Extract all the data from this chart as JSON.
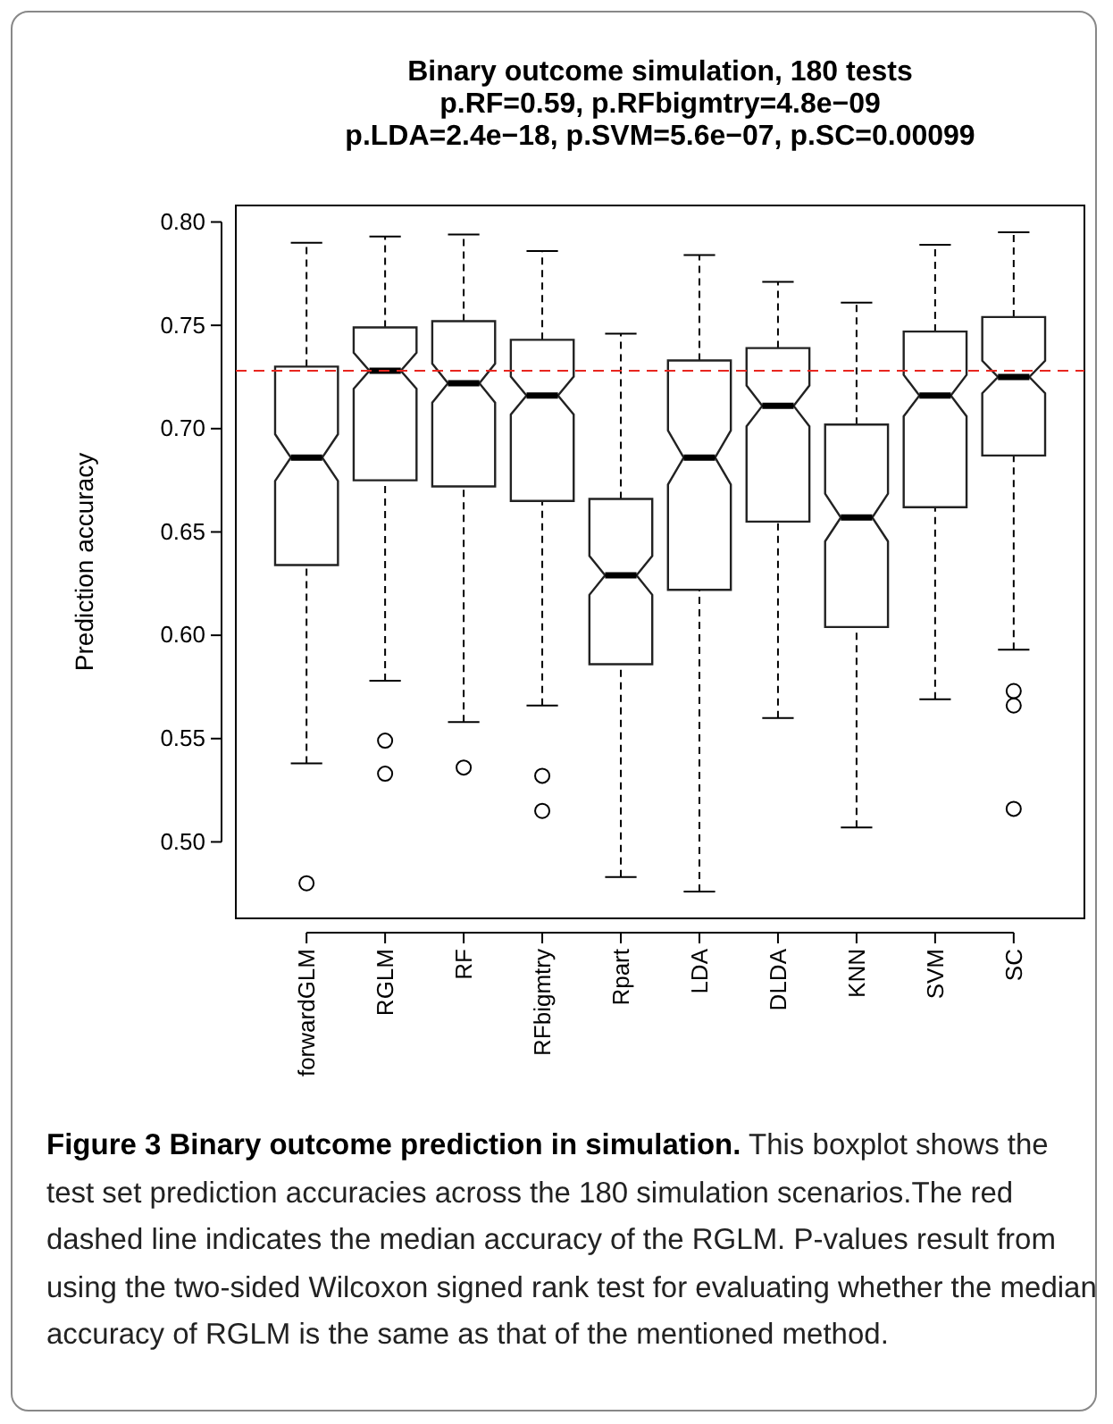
{
  "chart_data": {
    "type": "box",
    "title": "Binary outcome simulation, 180 tests",
    "subtitle": "p.RF=0.59, p.RFbigmtry=4.8e−09\np.LDA=2.4e−18, p.SVM=5.6e−07, p.SC=0.00099",
    "ylabel": "Prediction accuracy",
    "categories": [
      "forwardGLM",
      "RGLM",
      "RF",
      "RFbigmtry",
      "Rpart",
      "LDA",
      "DLDA",
      "KNN",
      "SVM",
      "SC"
    ],
    "boxes": [
      {
        "low": 0.538,
        "q1": 0.634,
        "median": 0.686,
        "q3": 0.73,
        "high": 0.79,
        "outliers": [
          0.48
        ]
      },
      {
        "low": 0.578,
        "q1": 0.675,
        "median": 0.728,
        "q3": 0.749,
        "high": 0.793,
        "outliers": [
          0.549,
          0.533
        ]
      },
      {
        "low": 0.558,
        "q1": 0.672,
        "median": 0.722,
        "q3": 0.752,
        "high": 0.794,
        "outliers": [
          0.536
        ]
      },
      {
        "low": 0.566,
        "q1": 0.665,
        "median": 0.716,
        "q3": 0.743,
        "high": 0.786,
        "outliers": [
          0.532,
          0.515
        ]
      },
      {
        "low": 0.483,
        "q1": 0.586,
        "median": 0.629,
        "q3": 0.666,
        "high": 0.746
      },
      {
        "low": 0.476,
        "q1": 0.622,
        "median": 0.686,
        "q3": 0.733,
        "high": 0.784
      },
      {
        "low": 0.56,
        "q1": 0.655,
        "median": 0.711,
        "q3": 0.739,
        "high": 0.771
      },
      {
        "low": 0.507,
        "q1": 0.604,
        "median": 0.657,
        "q3": 0.702,
        "high": 0.761
      },
      {
        "low": 0.569,
        "q1": 0.662,
        "median": 0.716,
        "q3": 0.747,
        "high": 0.789
      },
      {
        "low": 0.593,
        "q1": 0.687,
        "median": 0.725,
        "q3": 0.754,
        "high": 0.795,
        "outliers": [
          0.573,
          0.566,
          0.516
        ]
      }
    ],
    "ylim": [
      0.463,
      0.808
    ],
    "yticks": [
      {
        "value": 0.5,
        "label": "0.50"
      },
      {
        "value": 0.55,
        "label": "0.55"
      },
      {
        "value": 0.6,
        "label": "0.60"
      },
      {
        "value": 0.65,
        "label": "0.65"
      },
      {
        "value": 0.7,
        "label": "0.70"
      },
      {
        "value": 0.75,
        "label": "0.75"
      },
      {
        "value": 0.8,
        "label": "0.80"
      }
    ],
    "ref_lines": [
      {
        "axis": "y",
        "value": 0.728,
        "color": "#e8261f",
        "line_style": "dashed"
      }
    ],
    "annotations": [
      "Figure 3 Binary outcome prediction in simulation.",
      "This boxplot shows the test set prediction accuracies across the 180 simulation scenarios.The red dashed line indicates the median accuracy of the RGLM. P-values result from using the two-sided Wilcoxon signed rank test for evaluating whether the median accuracy of RGLM is the same as that of the mentioned method."
    ]
  }
}
